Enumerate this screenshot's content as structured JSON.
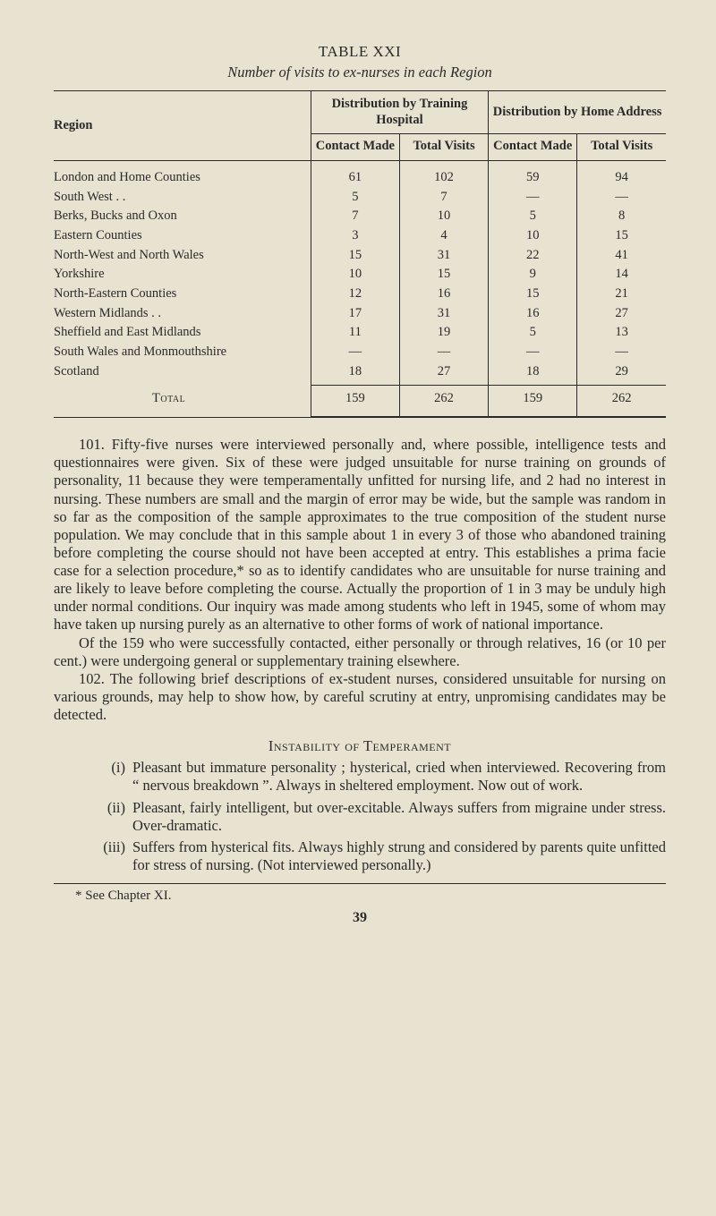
{
  "table": {
    "title": "TABLE XXI",
    "caption": "Number of visits to ex-nurses in each Region",
    "region_header": "Region",
    "group_headers": [
      "Distribution by Training Hospital",
      "Distribution by Home Address"
    ],
    "sub_headers": [
      "Contact Made",
      "Total Visits",
      "Contact Made",
      "Total Visits"
    ],
    "rows": [
      {
        "label": "London and Home Counties",
        "v": [
          "61",
          "102",
          "59",
          "94"
        ]
      },
      {
        "label": "South West . .",
        "v": [
          "5",
          "7",
          "—",
          "—"
        ]
      },
      {
        "label": "Berks, Bucks and Oxon",
        "v": [
          "7",
          "10",
          "5",
          "8"
        ]
      },
      {
        "label": "Eastern Counties",
        "v": [
          "3",
          "4",
          "10",
          "15"
        ]
      },
      {
        "label": "North-West and North Wales",
        "v": [
          "15",
          "31",
          "22",
          "41"
        ]
      },
      {
        "label": "Yorkshire",
        "v": [
          "10",
          "15",
          "9",
          "14"
        ]
      },
      {
        "label": "North-Eastern Counties",
        "v": [
          "12",
          "16",
          "15",
          "21"
        ]
      },
      {
        "label": "Western Midlands . .",
        "v": [
          "17",
          "31",
          "16",
          "27"
        ]
      },
      {
        "label": "Sheffield and East Midlands",
        "v": [
          "11",
          "19",
          "5",
          "13"
        ]
      },
      {
        "label": "South Wales and Monmouthshire",
        "v": [
          "—",
          "—",
          "—",
          "—"
        ]
      },
      {
        "label": "Scotland",
        "v": [
          "18",
          "27",
          "18",
          "29"
        ]
      }
    ],
    "total_label": "Total",
    "total": [
      "159",
      "262",
      "159",
      "262"
    ]
  },
  "para1": "101. Fifty-five nurses were interviewed personally and, where possible, intelligence tests and questionnaires were given. Six of these were judged unsuitable for nurse training on grounds of personality, 11 because they were temperamentally unfitted for nursing life, and 2 had no interest in nursing. These numbers are small and the margin of error may be wide, but the sample was random in so far as the composition of the sample approximates to the true composition of the student nurse population. We may conclude that in this sample about 1 in every 3 of those who abandoned training before completing the course should not have been accepted at entry. This establishes a prima facie case for a selection procedure,* so as to identify candidates who are unsuitable for nurse training and are likely to leave before completing the course. Actually the proportion of 1 in 3 may be unduly high under normal conditions. Our inquiry was made among students who left in 1945, some of whom may have taken up nursing purely as an alternative to other forms of work of national importance.",
  "para2": "Of the 159 who were successfully contacted, either personally or through relatives, 16 (or 10 per cent.) were undergoing general or supplementary training elsewhere.",
  "para3": "102. The following brief descriptions of ex-student nurses, considered unsuitable for nursing on various grounds, may help to show how, by careful scrutiny at entry, unpromising candidates may be detected.",
  "section_head": "Instability of Temperament",
  "items": [
    {
      "mark": "(i)",
      "text": "Pleasant but immature personality ; hysterical, cried when interviewed. Recovering from “ nervous breakdown ”. Always in sheltered employment. Now out of work."
    },
    {
      "mark": "(ii)",
      "text": "Pleasant, fairly intelligent, but over-excitable. Always suffers from migraine under stress. Over-dramatic."
    },
    {
      "mark": "(iii)",
      "text": "Suffers from hysterical fits. Always highly strung and considered by parents quite unfitted for stress of nursing. (Not interviewed personally.)"
    }
  ],
  "footnote": "* See Chapter XI.",
  "page_number": "39",
  "colors": {
    "background": "#e8e2d1",
    "text": "#2a2a2a"
  },
  "typography": {
    "body_fontsize_pt": 12,
    "table_fontsize_pt": 11,
    "font_family": "Times New Roman"
  }
}
